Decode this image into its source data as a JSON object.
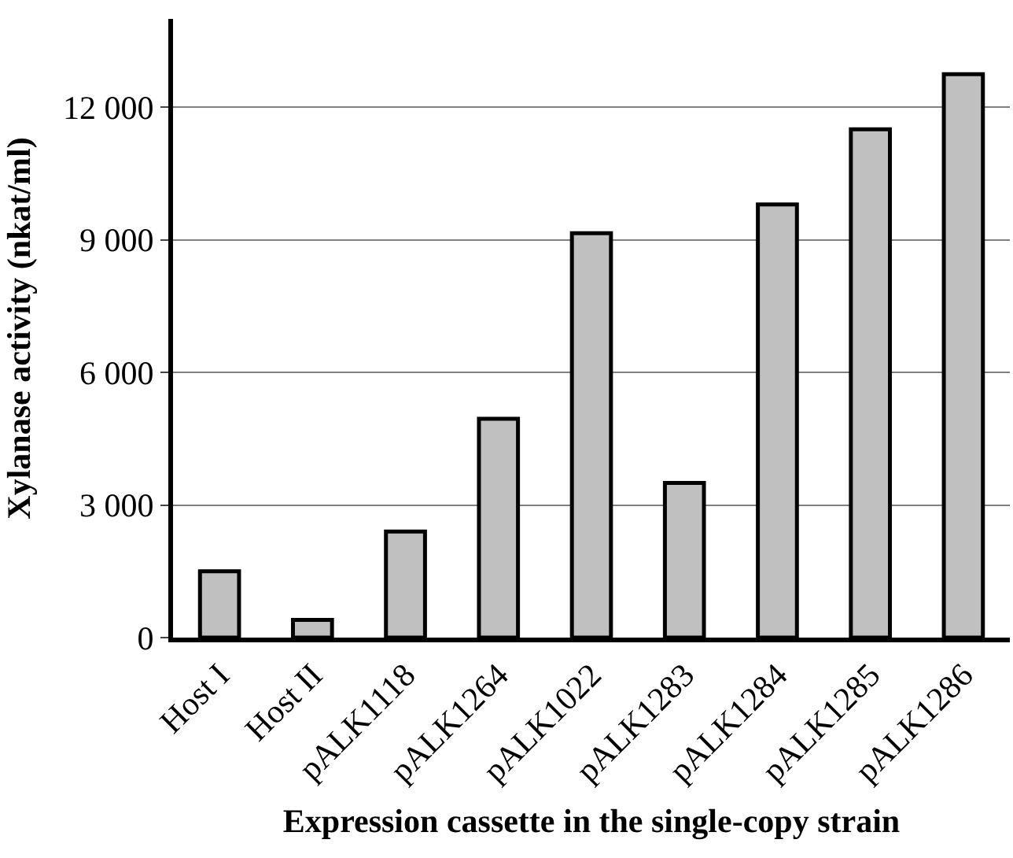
{
  "chart_data": {
    "type": "bar",
    "xlabel": "Expression cassette in the single-copy strain",
    "ylabel": "Xylanase activity (nkat/ml)",
    "categories": [
      "Host I",
      "Host II",
      "pALK1118",
      "pALK1264",
      "pALK1022",
      "pALK1283",
      "pALK1284",
      "pALK1285",
      "pALK1286"
    ],
    "values": [
      1500,
      400,
      2400,
      4950,
      9150,
      3500,
      9800,
      11500,
      12750
    ],
    "color": "#c0c0c0",
    "ylim": [
      0,
      14000
    ],
    "yticks": [
      {
        "value": 0,
        "label": "0"
      },
      {
        "value": 3000,
        "label": "3 000"
      },
      {
        "value": 6000,
        "label": "6 000"
      },
      {
        "value": 9000,
        "label": "9 000"
      },
      {
        "value": 12000,
        "label": "12 000"
      }
    ],
    "grid": "y"
  }
}
